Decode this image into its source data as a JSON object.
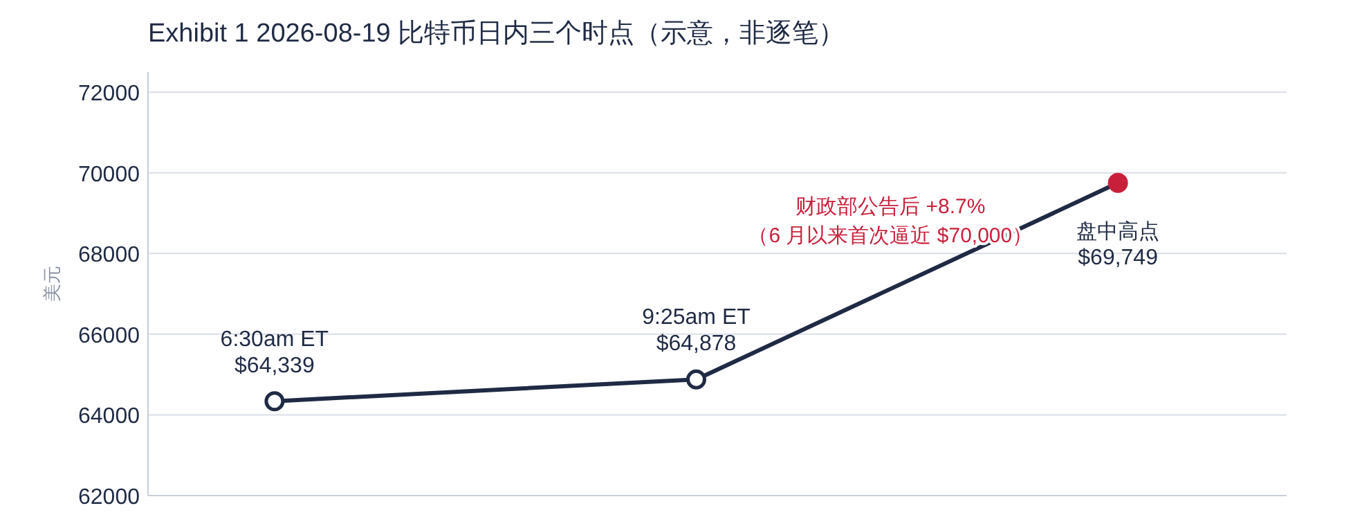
{
  "chart_data": {
    "type": "line",
    "title": "Exhibit 1  2026-08-19 比特币日内三个时点（示意，非逐笔）",
    "ylabel": "美元",
    "categories": [
      "6:30am ET",
      "9:25am ET",
      "盘中高点"
    ],
    "series": [
      {
        "color": "#1f2a44",
        "values": [
          64339,
          64878,
          69749
        ],
        "colors": [
          "#ffffff",
          "#ffffff",
          "#c8203a"
        ],
        "value_labels": [
          "$64,339",
          "$64,878",
          "$69,749"
        ]
      }
    ],
    "ylim": [
      62000,
      72500
    ],
    "yticks": [
      62000,
      64000,
      66000,
      68000,
      70000,
      72000
    ],
    "grid": "y",
    "marker": "circle",
    "line_style": "solid",
    "annotations": [
      "财政部公告后 +8.7%",
      "（6 月以来首次逼近 $70,000）"
    ]
  }
}
